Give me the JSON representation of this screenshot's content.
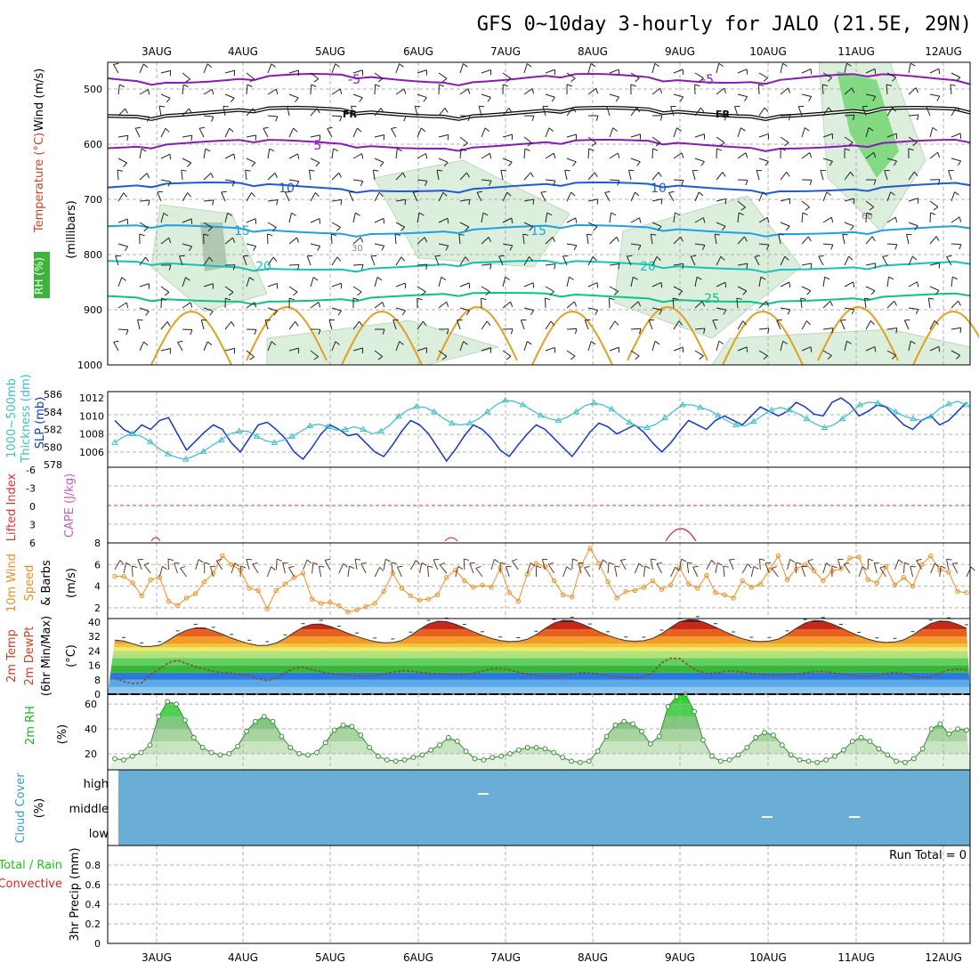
{
  "title": "GFS 0~10day 3-hourly for JALO (21.5E, 29N)",
  "date_labels": [
    "3AUG",
    "4AUG",
    "5AUG",
    "6AUG",
    "7AUG",
    "8AUG",
    "9AUG",
    "10AUG",
    "11AUG",
    "12AUG"
  ],
  "panels": {
    "upper": {
      "left_labels": [
        "Wind (m/s)",
        "Temperature (°C)",
        "RH (%)"
      ],
      "ylabel": "(millibars)",
      "yticks": [
        "500",
        "600",
        "700",
        "800",
        "900",
        "1000"
      ],
      "contour_labels": [
        "-5",
        "FR",
        "5",
        "10",
        "15",
        "20",
        "25",
        "30",
        "60"
      ]
    },
    "slp": {
      "left_labels": [
        "1000~500mb",
        "Thickness (dm)",
        "SLP (mb)"
      ],
      "left_ticks": [
        "578",
        "580",
        "582",
        "584",
        "586"
      ],
      "right_ticks": [
        "1006",
        "1008",
        "1010",
        "1012"
      ]
    },
    "cape": {
      "left_labels": [
        "Lifted Index",
        "CAPE (J/kg)"
      ],
      "ticks": [
        "-6",
        "-3",
        "0",
        "3",
        "6"
      ]
    },
    "wind10m": {
      "left_labels": [
        "10m Wind",
        "Speed",
        "& Barbs",
        "(m/s)"
      ],
      "ticks": [
        "2",
        "4",
        "6",
        "8"
      ]
    },
    "temp2m": {
      "left_labels": [
        "2m Temp",
        "2m DewPt",
        "(6hr Min/Max)",
        "(°C)"
      ],
      "ticks": [
        "0",
        "8",
        "16",
        "24",
        "32",
        "40"
      ]
    },
    "rh2m": {
      "left_labels": [
        "2m RH",
        "(%)"
      ],
      "ticks": [
        "20",
        "40",
        "60"
      ]
    },
    "cloud": {
      "left_labels": [
        "Cloud Cover",
        "(%)"
      ],
      "levels": [
        "high",
        "middle",
        "low"
      ]
    },
    "precip": {
      "left_labels": [
        "Total / Rain",
        "Convective",
        "3hr Precip (mm)"
      ],
      "ticks": [
        "0",
        "0.2",
        "0.4",
        "0.6",
        "0.8"
      ],
      "run_total": "Run Total = 0"
    }
  },
  "chart_data": [
    {
      "type": "line",
      "title": "1000~500mb Thickness (dm) / SLP (mb)",
      "x": "3-hourly steps from 2 Aug 12Z to 12 Aug 06Z",
      "series": [
        {
          "name": "SLP (mb)",
          "axis": "right",
          "ylim": [
            1004.5,
            1012.5
          ],
          "values": [
            1009.5,
            1008.5,
            1008,
            1009,
            1008.5,
            1009.5,
            1009.8,
            1008,
            1006.2,
            1007.2,
            1008.2,
            1009,
            1008.5,
            1007,
            1006,
            1007.5,
            1009,
            1009.3,
            1008.5,
            1007.5,
            1006,
            1005.2,
            1006.5,
            1008,
            1009,
            1008.5,
            1007.8,
            1008,
            1007,
            1006,
            1005.5,
            1006.8,
            1008.3,
            1009.5,
            1009,
            1008,
            1006.5,
            1005,
            1006.3,
            1007.8,
            1009,
            1008.5,
            1007.5,
            1006.2,
            1005.5,
            1006.8,
            1008,
            1009,
            1008.5,
            1007.5,
            1006.5,
            1005.5,
            1006.8,
            1008.2,
            1009.2,
            1008.8,
            1008,
            1008.5,
            1009,
            1008.2,
            1007,
            1006,
            1007,
            1008.3,
            1009.5,
            1009,
            1008.5,
            1009.5,
            1010,
            1009.5,
            1009,
            1010,
            1011,
            1010.5,
            1010,
            1010.5,
            1011.5,
            1011,
            1010.2,
            1010,
            1011.5,
            1012,
            1011.3,
            1010,
            1010.5,
            1011.2,
            1011,
            1010,
            1009,
            1008.5,
            1009.5,
            1010,
            1009,
            1009.5,
            1010.5,
            1011.5
          ]
        },
        {
          "name": "1000~500mb Thickness (dm)",
          "axis": "left",
          "ylim": [
            578,
            586
          ],
          "values": [
            580.5,
            581.2,
            581.5,
            581.2,
            580.6,
            579.8,
            579.2,
            578.8,
            578.6,
            579,
            579.5,
            580.2,
            580.8,
            581.5,
            581.8,
            581.8,
            581.2,
            580.7,
            580.5,
            580.8,
            581.2,
            581.8,
            582.4,
            582.6,
            582.3,
            581.9,
            582,
            582.3,
            582,
            581.5,
            581.8,
            582.5,
            583.5,
            584.2,
            584.6,
            584.5,
            584,
            583.3,
            582.7,
            582.5,
            582.7,
            583.2,
            584,
            584.8,
            585.3,
            585.2,
            584.8,
            584.2,
            583.6,
            583.2,
            583,
            583.4,
            584,
            584.7,
            585,
            584.8,
            584.3,
            583.5,
            582.8,
            582.3,
            582.2,
            582.6,
            583.3,
            584.1,
            584.8,
            584.8,
            584.5,
            584.2,
            583.6,
            583,
            582.5,
            582.4,
            582.9,
            583.6,
            584.2,
            584.5,
            584.2,
            583.8,
            583.2,
            582.6,
            582.2,
            582.5,
            583.2,
            584,
            584.8,
            585.1,
            585,
            584.6,
            584,
            583.5,
            583.2,
            583,
            583.5,
            584.4,
            584.9,
            585.2,
            584.8
          ]
        }
      ]
    },
    {
      "type": "line",
      "title": "10m Wind Speed (m/s)",
      "ylim": [
        1,
        8
      ],
      "values": [
        4.9,
        4.9,
        4.3,
        3.1,
        4.6,
        4.8,
        2.6,
        2.2,
        2.9,
        3.3,
        4.4,
        5.2,
        6.8,
        6,
        5.5,
        3.8,
        3.6,
        1.9,
        3.6,
        4.2,
        4.8,
        5.2,
        2.8,
        2.4,
        2.5,
        2.2,
        1.6,
        1.8,
        2.1,
        2.4,
        3.5,
        5.2,
        3.8,
        3.1,
        2.7,
        2.8,
        3.2,
        4.8,
        5.5,
        4.5,
        3.9,
        4.1,
        3.9,
        5.7,
        3.4,
        2.6,
        5.1,
        6.1,
        5.8,
        4.5,
        3.2,
        3,
        5.9,
        7.5,
        6.1,
        4.4,
        2.9,
        3.5,
        3.6,
        3.9,
        4.5,
        3.7,
        4.1,
        5.7,
        4.2,
        3.8,
        5,
        3.4,
        3.2,
        2.9,
        4.5,
        3.9,
        4.2,
        5.5,
        6.8,
        4.6,
        5.6,
        6,
        5.4,
        4.5,
        5.4,
        5.6,
        6.6,
        6.7,
        4.6,
        4.3,
        5.8,
        4.1,
        4.8,
        4,
        6,
        6.8,
        5.5,
        5.3,
        3.5,
        3.4
      ]
    },
    {
      "type": "area",
      "title": "2m Temp / 2m DewPt (°C)",
      "ylim": [
        0,
        42
      ],
      "series": [
        {
          "name": "2m Temp",
          "values": [
            30,
            29.5,
            28,
            26.5,
            26.5,
            27.2,
            30,
            33.2,
            35.5,
            36.8,
            36.8,
            35.2,
            33.3,
            31.2,
            29.5,
            28,
            27,
            27.2,
            28.4,
            31,
            34.3,
            37.2,
            38.8,
            39,
            37.7,
            35.8,
            33.8,
            32,
            30.5,
            29.2,
            28.5,
            28.7,
            29.8,
            32.5,
            36,
            39,
            40.5,
            40.3,
            38.8,
            36.8,
            34.7,
            32.7,
            31,
            29.8,
            29.2,
            29.4,
            30.5,
            33,
            36.5,
            39.5,
            41,
            40.8,
            39.2,
            37,
            34.7,
            32.7,
            31,
            29.8,
            29.4,
            29.7,
            31,
            33.6,
            37,
            40.2,
            41.4,
            41.1,
            39.4,
            37.2,
            34.8,
            32.6,
            30.8,
            29.6,
            29.2,
            29.5,
            30.6,
            33.2,
            36.6,
            39.5,
            40.9,
            40.6,
            39,
            36.8,
            34.5,
            32.4,
            30.6,
            29.3,
            28.7,
            29,
            30.2,
            32.8,
            36.2,
            39.2,
            40.6,
            40.4,
            38.8,
            36.6
          ]
        },
        {
          "name": "2m DewPt",
          "values": [
            9,
            7,
            6,
            6.3,
            11,
            14,
            17.5,
            18.8,
            17,
            15.2,
            14,
            12.5,
            12,
            11.8,
            11,
            10.2,
            8.5,
            7.5,
            9,
            12,
            14.5,
            15,
            13.8,
            12.4,
            11.5,
            11,
            10.6,
            10.2,
            10,
            10.3,
            11.2,
            12.2,
            13,
            12.8,
            12.1,
            11.6,
            11.2,
            11,
            10.7,
            10.8,
            11.6,
            12.8,
            14,
            14.4,
            13.5,
            12.2,
            11.2,
            10.5,
            10,
            9.8,
            10.2,
            11.2,
            12,
            11.8,
            11.2,
            10.3,
            9.8,
            9.4,
            9,
            9.5,
            12,
            17.5,
            20,
            19.8,
            16,
            13,
            11.5,
            11.8,
            12.5,
            12.8,
            12.3,
            11.5,
            11,
            10.6,
            10.3,
            10.6,
            11.2,
            11.8,
            12.5,
            12.6,
            12,
            11.2,
            10.6,
            10,
            9.6,
            10.3,
            11.5,
            12.2,
            11.4,
            9.8,
            9.3,
            9.6,
            11.5,
            13.5,
            14,
            13.5
          ]
        }
      ]
    },
    {
      "type": "area",
      "title": "2m RH (%)",
      "ylim": [
        7,
        68
      ],
      "values": [
        16,
        15,
        18,
        21,
        27,
        50,
        62,
        60,
        47,
        33,
        25,
        21,
        19,
        20,
        26,
        38,
        46,
        50,
        46,
        34,
        25,
        20,
        19,
        21,
        29,
        39,
        43,
        42,
        35,
        25,
        18,
        15,
        14,
        15,
        17,
        19,
        23,
        27,
        33,
        30,
        22,
        16,
        15,
        17,
        18,
        20,
        23,
        25,
        25,
        24,
        21,
        17,
        14,
        13,
        14,
        22,
        34,
        43,
        46,
        44,
        38,
        28,
        34,
        58,
        66,
        68,
        54,
        31,
        18,
        14,
        15,
        19,
        25,
        33,
        37,
        35,
        27,
        19,
        15,
        14,
        13,
        15,
        18,
        23,
        30,
        33,
        30,
        24,
        19,
        14,
        13,
        16,
        24,
        40,
        44,
        36,
        40,
        39
      ]
    },
    {
      "type": "bar",
      "title": "3hr Precip (mm)",
      "ylim": [
        0,
        1
      ],
      "values": [],
      "annotation": "Run Total = 0"
    }
  ],
  "colors": {
    "temp_purple": "#8a1ab4",
    "temp_blue": "#1f5ad8",
    "temp_lightblue": "#1ca0e8",
    "temp_teal": "#14c2b8",
    "temp_green": "#10c08a",
    "temp_orange": "#e0a020",
    "rh_green": "#c9e8c9",
    "slp_blue": "#1238c8",
    "thickness_cyan": "#38c0c8",
    "wind_orange": "#f08c1e",
    "cloud_blue": "#6aaed6",
    "precip_green": "#22c022",
    "precip_red": "#e02020"
  }
}
